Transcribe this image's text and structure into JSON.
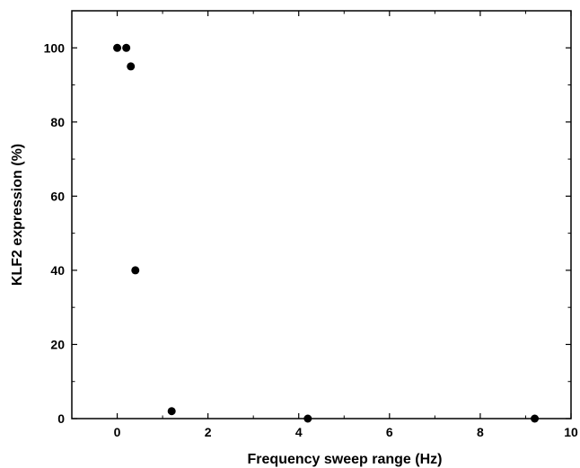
{
  "chart_data": {
    "type": "scatter",
    "title": "",
    "xlabel": "Frequency sweep range (Hz)",
    "ylabel": "KLF2 expression (%)",
    "xlim": [
      -1,
      10
    ],
    "ylim": [
      0,
      110
    ],
    "x_ticks": [
      0,
      2,
      4,
      6,
      8,
      10
    ],
    "y_ticks": [
      0,
      20,
      40,
      60,
      80,
      100
    ],
    "grid": false,
    "legend": "none",
    "marker_color": "#000000",
    "series": [
      {
        "points": [
          {
            "x": 0,
            "y": 100
          },
          {
            "x": 0.2,
            "y": 100
          },
          {
            "x": 0.3,
            "y": 95
          },
          {
            "x": 0.4,
            "y": 40
          },
          {
            "x": 1.2,
            "y": 2
          },
          {
            "x": 4.2,
            "y": 0
          },
          {
            "x": 9.2,
            "y": 0
          }
        ]
      }
    ]
  }
}
